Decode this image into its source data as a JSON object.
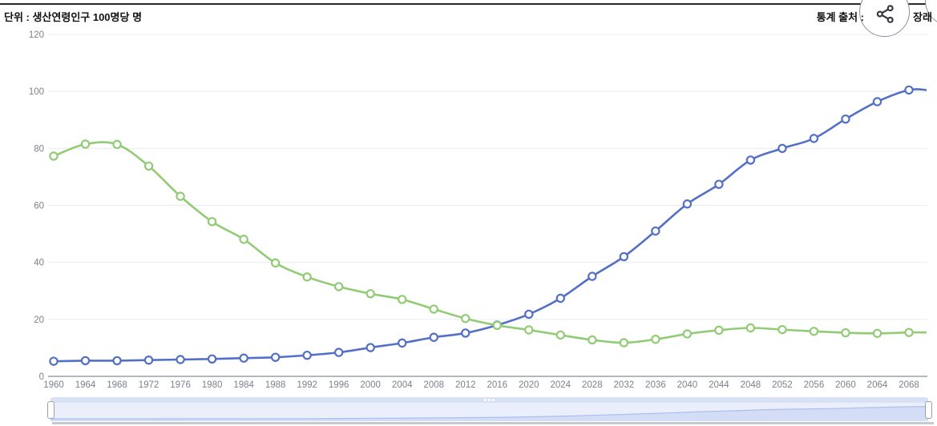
{
  "header": {
    "unit_label": "단위 : 생산연령인구 100명당 명",
    "source_label": "통계 출처 :",
    "source_suffix": "장래"
  },
  "icons": {
    "share": "share-icon",
    "grip": "grip-dots-icon"
  },
  "colors": {
    "blue_series": "#5470c6",
    "green_series": "#91cc75",
    "grid_line": "#e9ecf2",
    "axis_line": "#9aa0a8",
    "nav_area": "#d3def6",
    "nav_line": "#aabfec"
  },
  "chart_data": {
    "type": "line",
    "title": "",
    "xlabel": "",
    "ylabel": "생산연령인구 100명당 명",
    "x": [
      1960,
      1964,
      1968,
      1972,
      1976,
      1980,
      1984,
      1988,
      1992,
      1996,
      2000,
      2004,
      2008,
      2012,
      2016,
      2020,
      2024,
      2028,
      2032,
      2036,
      2040,
      2044,
      2048,
      2052,
      2056,
      2060,
      2064,
      2068
    ],
    "series": [
      {
        "name": "blue-series",
        "color": "#5470c6",
        "values": [
          5.3,
          5.5,
          5.5,
          5.7,
          5.9,
          6.1,
          6.4,
          6.7,
          7.4,
          8.4,
          10.1,
          11.7,
          13.7,
          15.2,
          18.0,
          21.8,
          27.4,
          35.1,
          42.0,
          51.0,
          60.5,
          67.4,
          75.9,
          80.0,
          83.5,
          90.3,
          96.4,
          100.5
        ]
      },
      {
        "name": "green-series",
        "color": "#91cc75",
        "values": [
          77.3,
          81.5,
          81.4,
          73.8,
          63.2,
          54.3,
          48.1,
          39.8,
          34.9,
          31.5,
          29.0,
          27.0,
          23.6,
          20.3,
          17.9,
          16.3,
          14.5,
          12.8,
          11.8,
          13.0,
          14.9,
          16.2,
          17.0,
          16.4,
          15.8,
          15.3,
          15.1,
          15.4
        ]
      }
    ],
    "ylim": [
      0,
      120
    ],
    "yticks": [
      0,
      20,
      40,
      60,
      80,
      100,
      120
    ],
    "grid": true,
    "legend_position": "none",
    "smooth": true
  }
}
